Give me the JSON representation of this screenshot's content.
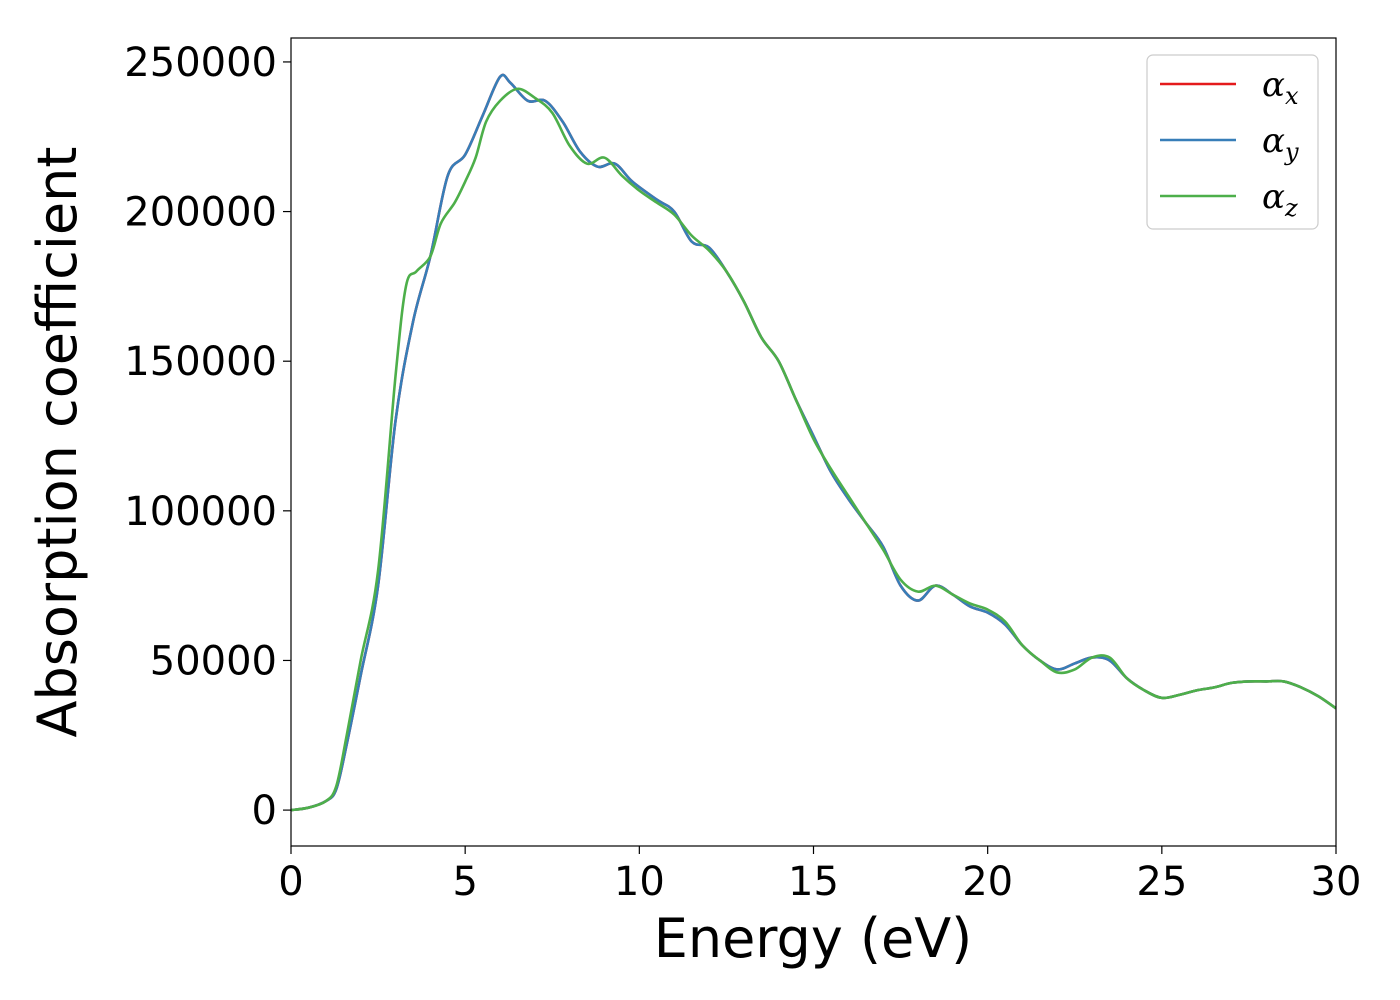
{
  "chart_data": {
    "type": "line",
    "xlabel": "Energy (eV)",
    "ylabel": "Absorption coefficient",
    "xlim": [
      0,
      30
    ],
    "ylim": [
      -12000,
      258000
    ],
    "xticks": [
      0,
      5,
      10,
      15,
      20,
      25,
      30
    ],
    "yticks": [
      0,
      50000,
      100000,
      150000,
      200000,
      250000
    ],
    "grid": false,
    "legend_position": "top-right",
    "series": [
      {
        "name": "αx",
        "symbol": "α",
        "subscript": "x",
        "color": "#e41a1c",
        "x": [
          0,
          0.5,
          1.0,
          1.3,
          1.6,
          2.0,
          2.5,
          3.0,
          3.5,
          4.0,
          4.5,
          5.0,
          5.5,
          6.0,
          6.3,
          6.8,
          7.3,
          7.8,
          8.3,
          8.8,
          9.3,
          9.8,
          10.5,
          11.0,
          11.5,
          12.0,
          12.5,
          13.0,
          13.5,
          14.0,
          14.5,
          15.0,
          15.5,
          16.0,
          16.5,
          17.0,
          17.5,
          18.0,
          18.5,
          19.0,
          19.5,
          20.0,
          20.5,
          21.0,
          21.5,
          22.0,
          22.5,
          23.0,
          23.5,
          24.0,
          24.5,
          25.0,
          25.5,
          26.0,
          26.5,
          27.0,
          27.5,
          28.0,
          28.5,
          29.0,
          29.5,
          30.0
        ],
        "y": [
          0,
          800,
          3000,
          7000,
          22000,
          45000,
          75000,
          130000,
          163000,
          185000,
          212000,
          219000,
          232000,
          245000,
          243000,
          237000,
          237000,
          230000,
          220000,
          215000,
          216000,
          210000,
          204000,
          200000,
          190000,
          188000,
          180000,
          170000,
          158000,
          150000,
          137000,
          125000,
          113000,
          104000,
          96000,
          88000,
          75000,
          70000,
          75000,
          72000,
          68000,
          66000,
          62000,
          55000,
          50000,
          47000,
          49000,
          51000,
          50000,
          44000,
          40000,
          37500,
          38500,
          40000,
          41000,
          42500,
          43000,
          43000,
          43000,
          41000,
          38000,
          34000
        ]
      },
      {
        "name": "αy",
        "symbol": "α",
        "subscript": "y",
        "color": "#377eb8",
        "x": [
          0,
          0.5,
          1.0,
          1.3,
          1.6,
          2.0,
          2.5,
          3.0,
          3.5,
          4.0,
          4.5,
          5.0,
          5.5,
          6.0,
          6.3,
          6.8,
          7.3,
          7.8,
          8.3,
          8.8,
          9.3,
          9.8,
          10.5,
          11.0,
          11.5,
          12.0,
          12.5,
          13.0,
          13.5,
          14.0,
          14.5,
          15.0,
          15.5,
          16.0,
          16.5,
          17.0,
          17.5,
          18.0,
          18.5,
          19.0,
          19.5,
          20.0,
          20.5,
          21.0,
          21.5,
          22.0,
          22.5,
          23.0,
          23.5,
          24.0,
          24.5,
          25.0,
          25.5,
          26.0,
          26.5,
          27.0,
          27.5,
          28.0,
          28.5,
          29.0,
          29.5,
          30.0
        ],
        "y": [
          0,
          800,
          3000,
          7000,
          22000,
          45000,
          75000,
          130000,
          163000,
          185000,
          212000,
          219000,
          232000,
          245000,
          243000,
          237000,
          237000,
          230000,
          220000,
          215000,
          216000,
          210000,
          204000,
          200000,
          190000,
          188000,
          180000,
          170000,
          158000,
          150000,
          137000,
          125000,
          113000,
          104000,
          96000,
          88000,
          75000,
          70000,
          75000,
          72000,
          68000,
          66000,
          62000,
          55000,
          50000,
          47000,
          49000,
          51000,
          50000,
          44000,
          40000,
          37500,
          38500,
          40000,
          41000,
          42500,
          43000,
          43000,
          43000,
          41000,
          38000,
          34000
        ]
      },
      {
        "name": "αz",
        "symbol": "α",
        "subscript": "z",
        "color": "#4daf4a",
        "x": [
          0,
          0.5,
          1.0,
          1.3,
          1.6,
          2.0,
          2.5,
          3.0,
          3.3,
          3.6,
          4.0,
          4.3,
          4.7,
          5.0,
          5.3,
          5.6,
          6.0,
          6.5,
          7.0,
          7.5,
          8.0,
          8.5,
          9.0,
          9.5,
          10.0,
          10.5,
          11.0,
          11.5,
          12.0,
          12.5,
          13.0,
          13.5,
          14.0,
          14.5,
          15.0,
          15.5,
          16.0,
          16.5,
          17.0,
          17.5,
          18.0,
          18.5,
          19.0,
          19.5,
          20.0,
          20.5,
          21.0,
          21.5,
          22.0,
          22.5,
          23.0,
          23.5,
          24.0,
          24.5,
          25.0,
          25.5,
          26.0,
          26.5,
          27.0,
          27.5,
          28.0,
          28.5,
          29.0,
          29.5,
          30.0
        ],
        "y": [
          0,
          800,
          3000,
          8000,
          25000,
          50000,
          80000,
          145000,
          175000,
          180000,
          185000,
          196000,
          203000,
          210000,
          218000,
          230000,
          237000,
          241000,
          238000,
          233000,
          222000,
          216000,
          218000,
          212000,
          207000,
          203000,
          199000,
          192000,
          187000,
          180000,
          170000,
          158000,
          150000,
          137000,
          124000,
          114000,
          105000,
          96000,
          87000,
          77000,
          73000,
          75000,
          72000,
          69000,
          67000,
          63000,
          55000,
          50000,
          46000,
          47000,
          51000,
          51000,
          44000,
          40000,
          37500,
          38500,
          40000,
          41000,
          42500,
          43000,
          43000,
          43000,
          41000,
          38000,
          34000
        ]
      }
    ]
  }
}
